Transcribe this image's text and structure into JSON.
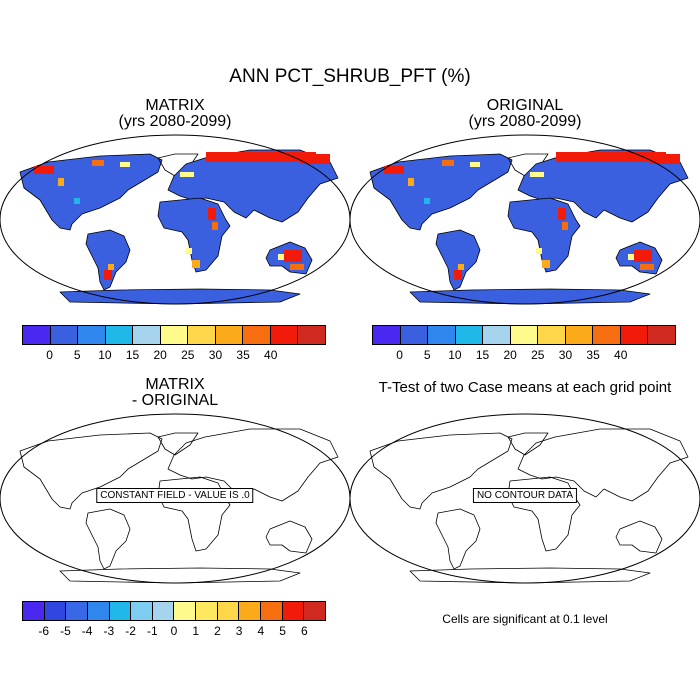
{
  "title": "ANN PCT_SHRUB_PFT (%)",
  "panels": {
    "top_left": {
      "title": "MATRIX",
      "subtitle": "(yrs 2080-2099)"
    },
    "top_right": {
      "title": "ORIGINAL",
      "subtitle": "(yrs 2080-2099)"
    },
    "bottom_left": {
      "title": "MATRIX",
      "subtitle": "- ORIGINAL",
      "message": "CONSTANT FIELD - VALUE IS .0"
    },
    "bottom_right": {
      "title": "T-Test of two Case means at each grid point",
      "message": "NO CONTOUR DATA",
      "footnote": "Cells are significant at 0.1 level"
    }
  },
  "colorbar_top": {
    "labels": [
      "0",
      "5",
      "10",
      "15",
      "20",
      "25",
      "30",
      "35",
      "40"
    ],
    "colors": [
      "#4a28f0",
      "#3a60e0",
      "#2f86ec",
      "#1fb8e8",
      "#a6d4ec",
      "#fffa8c",
      "#fed64a",
      "#fbab1a",
      "#f66e10",
      "#f21a08",
      "#d02a20"
    ]
  },
  "colorbar_bottom": {
    "labels": [
      "-6",
      "-5",
      "-4",
      "-3",
      "-2",
      "-1",
      "0",
      "1",
      "2",
      "3",
      "4",
      "5",
      "6"
    ],
    "colors": [
      "#4a28f0",
      "#3046e0",
      "#3868e6",
      "#2f86ec",
      "#1fb8e8",
      "#7dcdf0",
      "#a6d4ec",
      "#fffa8c",
      "#fee860",
      "#fed64a",
      "#fbab1a",
      "#f66e10",
      "#f21a08",
      "#d02a20"
    ]
  }
}
